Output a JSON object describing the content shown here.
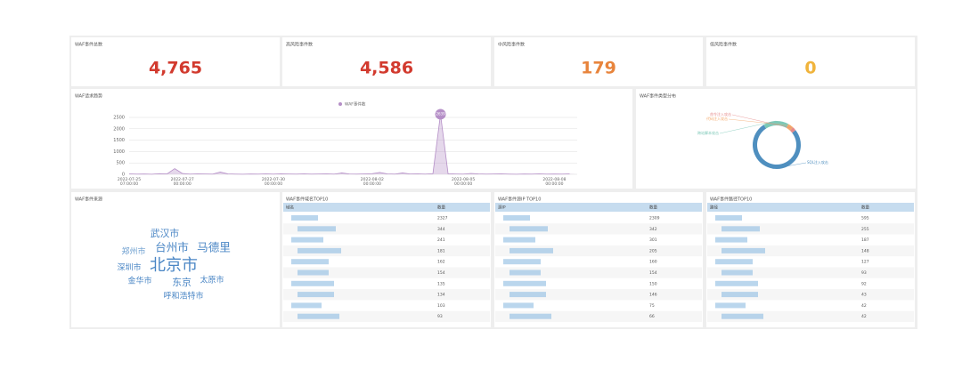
{
  "cards": [
    {
      "title": "WAF事件总数",
      "value": "4,765",
      "color": "#d23a2e"
    },
    {
      "title": "高风险事件数",
      "value": "4,586",
      "color": "#d23a2e"
    },
    {
      "title": "中风险事件数",
      "value": "179",
      "color": "#e8843c"
    },
    {
      "title": "低风险事件数",
      "value": "0",
      "color": "#f0b43c"
    }
  ],
  "trend": {
    "type": "line",
    "title": "WAF请求趋势",
    "series": [
      {
        "name": "WAF事件数",
        "color": "#b58fc7",
        "values": [
          20,
          10,
          15,
          5,
          30,
          20,
          250,
          40,
          10,
          20,
          15,
          10,
          100,
          20,
          10,
          5,
          15,
          10,
          20,
          10,
          25,
          15,
          10,
          20,
          10,
          15,
          20,
          10,
          60,
          15,
          10,
          20,
          30,
          80,
          20,
          10,
          60,
          15,
          20,
          10,
          30,
          2639,
          20,
          15,
          10,
          40,
          20,
          10,
          15,
          20,
          10,
          5,
          15,
          10,
          20,
          10,
          15,
          10,
          20
        ],
        "value_labels": {
          "41": "2639"
        }
      }
    ],
    "categories": [
      "2022-07-25\n07:00:00",
      null,
      null,
      null,
      null,
      null,
      null,
      "2022-07-27\n00:00:00",
      null,
      null,
      null,
      null,
      null,
      null,
      null,
      null,
      null,
      null,
      null,
      "2022-07-30\n00:00:00",
      null,
      null,
      null,
      null,
      null,
      null,
      null,
      null,
      null,
      null,
      null,
      null,
      "2022-08-02\n00:00:00",
      null,
      null,
      null,
      null,
      null,
      null,
      null,
      null,
      null,
      null,
      null,
      "2022-08-05\n00:00:00",
      null,
      null,
      null,
      null,
      null,
      null,
      null,
      null,
      null,
      null,
      null,
      "2022-08-08\n00:00:00",
      null,
      null,
      null
    ],
    "ylim": [
      0,
      2500
    ],
    "yticks": [
      0,
      500,
      1000,
      1500,
      2000,
      2500
    ],
    "grid": true
  },
  "types": {
    "type": "pie",
    "title": "WAF事件类型分布",
    "categories": [
      "SQL注入攻击",
      "跨站脚本攻击",
      "代码注入攻击",
      "命令注入攻击"
    ],
    "values": [
      3650,
      820,
      180,
      115
    ],
    "colors": [
      "#4f8fbf",
      "#7cc8b7",
      "#f3a86b",
      "#e58a8a"
    ]
  },
  "sources": {
    "title": "WAF事件来源",
    "words": [
      "北京市",
      "台州市",
      "马德里",
      "武汉市",
      "郑州市",
      "深圳市",
      "金华市",
      "东京",
      "太原市",
      "呼和浩特市"
    ],
    "weights": [
      10,
      7,
      7,
      6,
      5,
      5,
      5,
      6,
      5,
      5
    ]
  },
  "tables": [
    {
      "title": "WAF事件域名TOP10",
      "header": [
        "域名",
        "数量"
      ],
      "counts": [
        "2327",
        "344",
        "241",
        "181",
        "162",
        "154",
        "135",
        "134",
        "103",
        "93"
      ]
    },
    {
      "title": "WAF事件源IP TOP10",
      "header": [
        "源IP",
        "数量"
      ],
      "counts": [
        "2309",
        "342",
        "301",
        "205",
        "160",
        "154",
        "150",
        "146",
        "75",
        "66"
      ]
    },
    {
      "title": "WAF事件路径TOP10",
      "header": [
        "路径",
        "数量"
      ],
      "counts": [
        "595",
        "255",
        "187",
        "148",
        "127",
        "93",
        "92",
        "43",
        "42",
        "42"
      ]
    }
  ]
}
